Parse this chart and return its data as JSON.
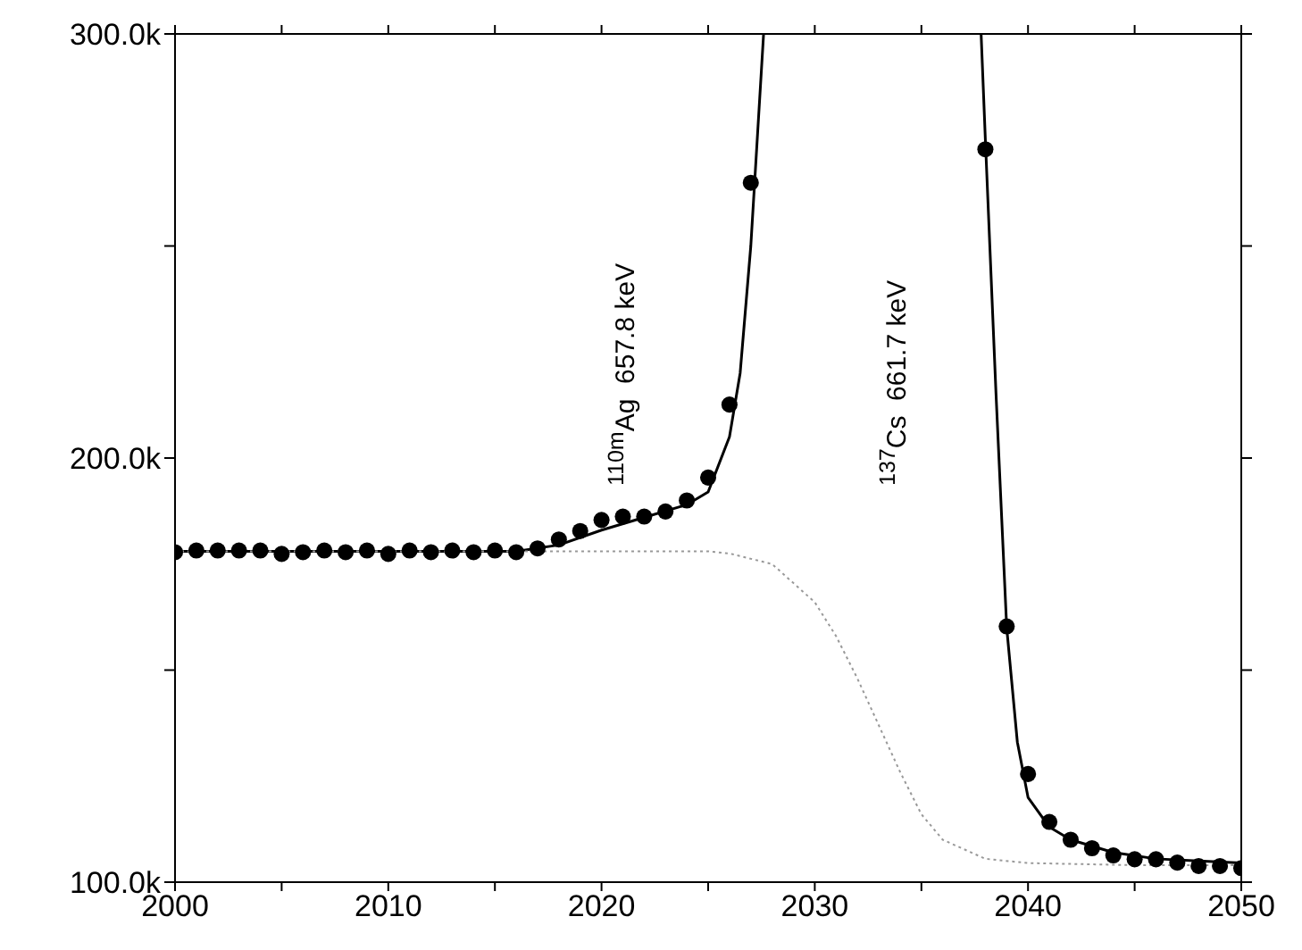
{
  "chart_data": {
    "type": "scatter",
    "marker": "circle",
    "xlim": [
      2000,
      2050
    ],
    "xticks": [
      2000,
      {
        "value": 2005,
        "label": null
      },
      2010,
      {
        "value": 2015,
        "label": null
      },
      2020,
      {
        "value": 2025,
        "label": null
      },
      2030,
      {
        "value": 2035,
        "label": null
      },
      2040,
      {
        "value": 2045,
        "label": null
      },
      2050
    ],
    "ylim": [
      100000,
      300000
    ],
    "yticks": [
      {
        "value": 100000,
        "label": "100.0k"
      },
      {
        "value": 150000,
        "label": null
      },
      {
        "value": 200000,
        "label": "200.0k"
      },
      {
        "value": 250000,
        "label": null
      },
      {
        "value": 300000,
        "label": "300.0k"
      }
    ],
    "annotations": [
      "$^{110m}$Ag  657.8 keV",
      "$^{137}$Cs  661.7 keV"
    ],
    "series": [
      {
        "color": "#000000",
        "x": [
          2000,
          2001,
          2002,
          2003,
          2004,
          2005,
          2006,
          2007,
          2008,
          2009,
          2010,
          2011,
          2012,
          2013,
          2014,
          2015,
          2016,
          2017,
          2018,
          2019,
          2020,
          2021,
          2022,
          2023,
          2024,
          2025,
          2026,
          2027,
          2038,
          2039,
          2040,
          2041,
          2042,
          2043,
          2044,
          2045,
          2046,
          2047,
          2048,
          2049,
          2050
        ],
        "values": [
          177800,
          178200,
          178200,
          178200,
          178200,
          177400,
          177800,
          178200,
          177800,
          178200,
          177400,
          178200,
          177800,
          178200,
          177800,
          178200,
          177800,
          178700,
          180800,
          182800,
          185400,
          186200,
          186200,
          187400,
          190000,
          195400,
          212600,
          264900,
          272800,
          160300,
          125500,
          114200,
          110000,
          108000,
          106300,
          105400,
          105400,
          104600,
          103800,
          103800,
          103300
        ]
      },
      {
        "type": "line",
        "color": "#000000",
        "line_style": "solid",
        "marker": "none",
        "x": [
          2000,
          2005,
          2010,
          2016,
          2018,
          2020,
          2022,
          2024,
          2025,
          2026,
          2026.5,
          2027,
          2027.3,
          2027.6,
          2032,
          2037.8,
          2038,
          2038.5,
          2039,
          2039.5,
          2040,
          2041,
          2042,
          2044,
          2046,
          2048,
          2050
        ],
        "values": [
          178000,
          178000,
          178000,
          178000,
          179500,
          183000,
          186000,
          189000,
          192000,
          205000,
          220000,
          250000,
          275000,
          300000,
          null,
          300000,
          275000,
          215000,
          160000,
          133000,
          120000,
          113000,
          110000,
          107000,
          105500,
          105000,
          104500
        ]
      },
      {
        "type": "line",
        "color": "#999999",
        "line_style": "dotted",
        "marker": "none",
        "x": [
          2000,
          2010,
          2020,
          2025,
          2026,
          2028,
          2030,
          2031,
          2032,
          2033,
          2034,
          2035,
          2036,
          2038,
          2040,
          2045,
          2050
        ],
        "values": [
          178000,
          178000,
          178000,
          178000,
          177500,
          175000,
          166000,
          158000,
          148000,
          137000,
          126000,
          116000,
          110000,
          105500,
          104500,
          104000,
          104000
        ]
      }
    ]
  }
}
